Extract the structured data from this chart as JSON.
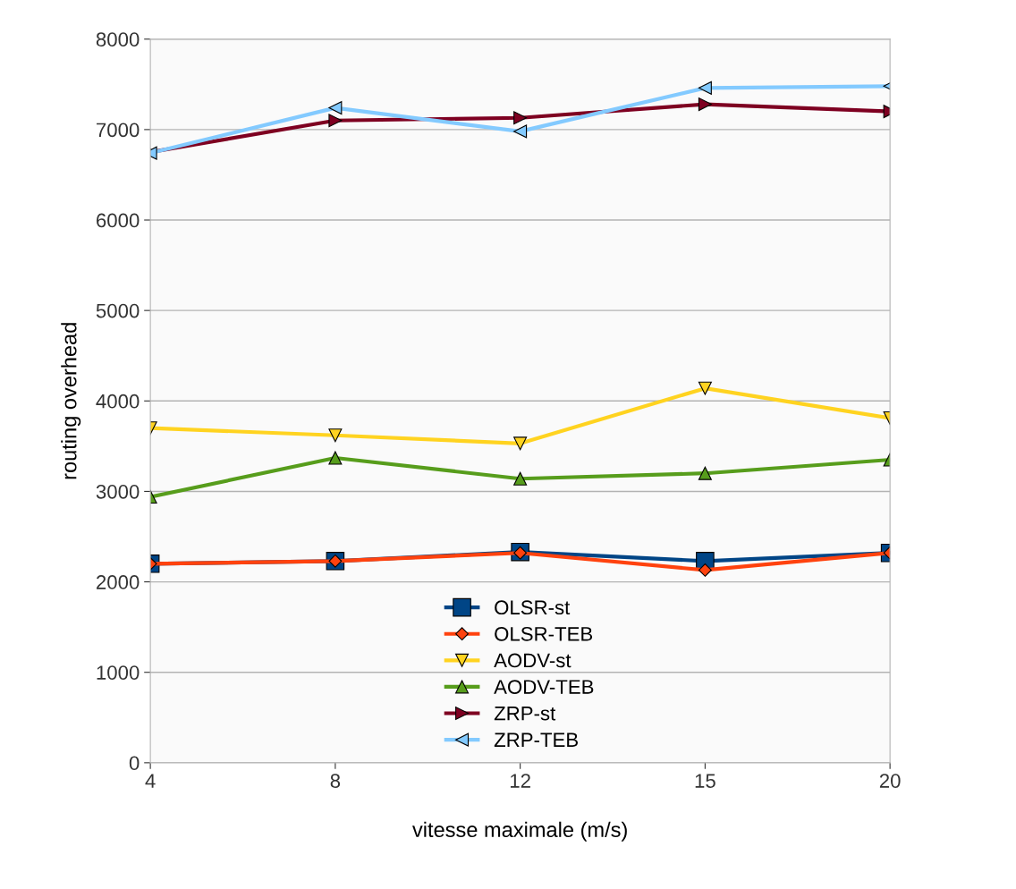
{
  "chart_data": {
    "type": "line",
    "xlabel": "vitesse maximale (m/s)",
    "ylabel": "routing overhead",
    "categories": [
      "4",
      "8",
      "12",
      "15",
      "20"
    ],
    "ylim": [
      0,
      8000
    ],
    "yticks": [
      0,
      1000,
      2000,
      3000,
      4000,
      5000,
      6000,
      7000,
      8000
    ],
    "grid": "y",
    "legend": "bottom",
    "series": [
      {
        "name": "OLSR-st",
        "color": "#004586",
        "marker": "square",
        "values": [
          2200,
          2230,
          2330,
          2230,
          2320
        ]
      },
      {
        "name": "OLSR-TEB",
        "color": "#ff420e",
        "marker": "diamond",
        "values": [
          2200,
          2230,
          2320,
          2130,
          2320
        ]
      },
      {
        "name": "AODV-st",
        "color": "#ffd320",
        "marker": "triangle_down",
        "values": [
          3700,
          3620,
          3530,
          4140,
          3810
        ]
      },
      {
        "name": "AODV-TEB",
        "color": "#579d1c",
        "marker": "triangle",
        "values": [
          2940,
          3370,
          3140,
          3200,
          3350
        ]
      },
      {
        "name": "ZRP-st",
        "color": "#7e0021",
        "marker": "triangle_right",
        "values": [
          6750,
          7100,
          7130,
          7280,
          7200
        ]
      },
      {
        "name": "ZRP-TEB",
        "color": "#83caff",
        "marker": "triangle_left",
        "values": [
          6740,
          7240,
          6980,
          7460,
          7480
        ]
      }
    ]
  }
}
